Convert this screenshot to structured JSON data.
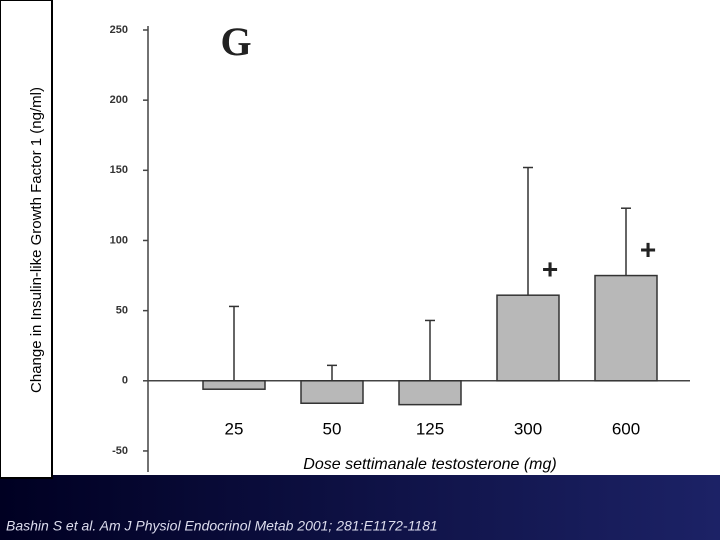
{
  "chart_data": {
    "type": "bar",
    "title": "G",
    "categories": [
      "25",
      "50",
      "125",
      "300",
      "600"
    ],
    "values": [
      -6,
      -16,
      -17,
      61,
      75
    ],
    "errors": [
      59,
      27,
      60,
      91,
      48
    ],
    "color": "#b8b8b8",
    "x_label": "Dose settimanale testosterone (mg)",
    "y_label": "Change in Insulin-like Growth Factor 1 (ng/ml)",
    "ylim": [
      -65,
      250
    ],
    "yticks": [
      -50,
      0,
      50,
      100,
      150,
      200,
      250
    ],
    "annotations": [
      {
        "text": "+",
        "category": "300"
      },
      {
        "text": "+",
        "category": "600"
      }
    ]
  },
  "footer": "Bashin S et al. Am J Physiol Endocrinol Metab 2001; 281:E1172-1181"
}
